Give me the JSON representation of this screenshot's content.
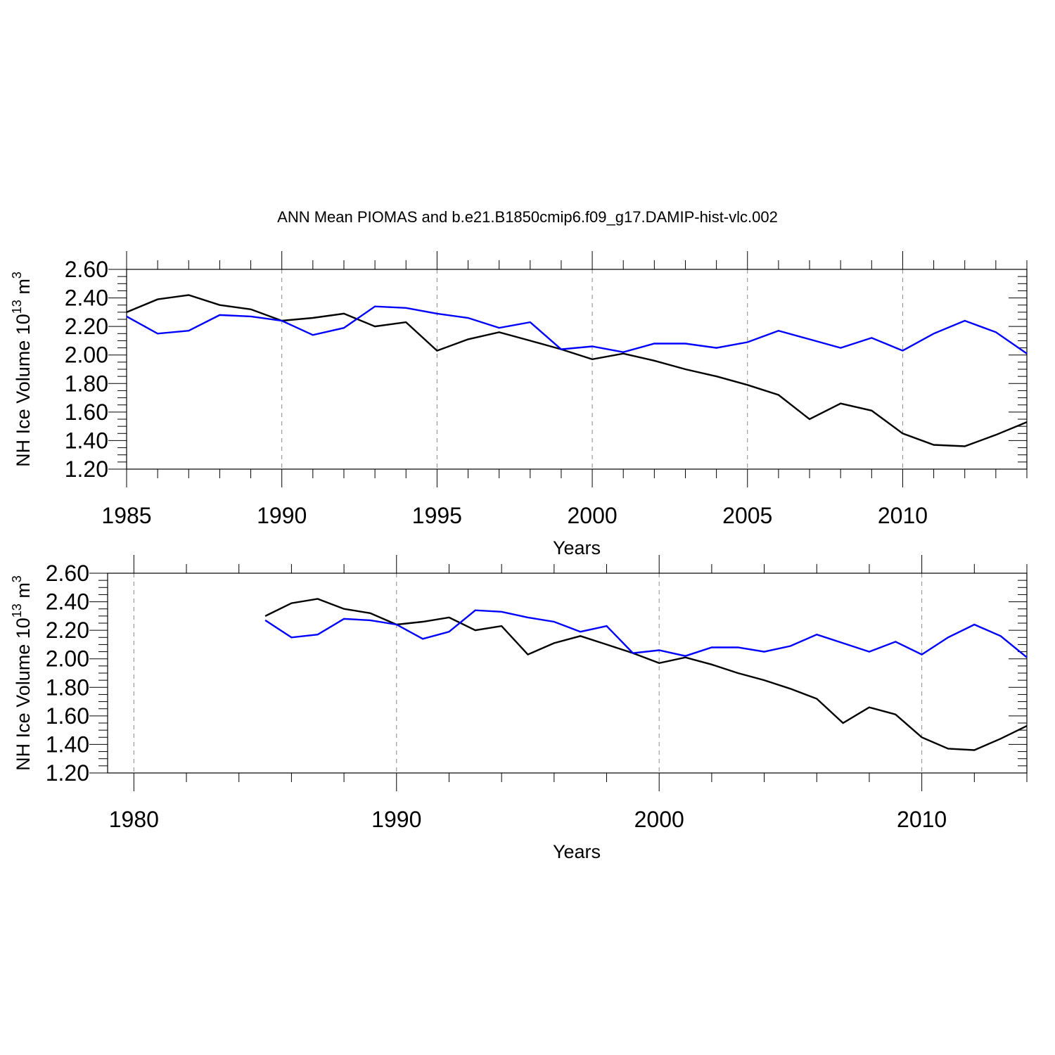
{
  "figure": {
    "title": "ANN Mean PIOMAS and b.e21.B1850cmip6.f09_g17.DAMIP-hist-vlc.002"
  },
  "chart_data": [
    {
      "type": "line",
      "xlabel": "Years",
      "ylabel": "NH Ice Volume 10",
      "ylabel_exp": "13",
      "ylabel_unit": " m",
      "ylabel_unit_exp": "3",
      "xlim": [
        1985,
        2014
      ],
      "ylim": [
        1.2,
        2.6
      ],
      "x_ticks": [
        1985,
        1990,
        1995,
        2000,
        2005,
        2010
      ],
      "x_tick_labels": [
        "1985",
        "1990",
        "1995",
        "2000",
        "2005",
        "2010"
      ],
      "x_minor_step": 1,
      "y_ticks": [
        1.2,
        1.4,
        1.6,
        1.8,
        2.0,
        2.2,
        2.4,
        2.6
      ],
      "y_tick_labels": [
        "1.20",
        "1.40",
        "1.60",
        "1.80",
        "2.00",
        "2.20",
        "2.40",
        "2.60"
      ],
      "y_minor_step": 0.05,
      "grid": "vertical dashed at major x ticks",
      "x": [
        1985,
        1986,
        1987,
        1988,
        1989,
        1990,
        1991,
        1992,
        1993,
        1994,
        1995,
        1996,
        1997,
        1998,
        1999,
        2000,
        2001,
        2002,
        2003,
        2004,
        2005,
        2006,
        2007,
        2008,
        2009,
        2010,
        2011,
        2012,
        2013,
        2014
      ],
      "series": [
        {
          "color": "#000000",
          "values": [
            2.3,
            2.39,
            2.42,
            2.35,
            2.32,
            2.24,
            2.26,
            2.29,
            2.2,
            2.23,
            2.03,
            2.11,
            2.16,
            2.1,
            2.04,
            1.97,
            2.01,
            1.96,
            1.9,
            1.85,
            1.79,
            1.72,
            1.55,
            1.66,
            1.61,
            1.45,
            1.37,
            1.36,
            1.44,
            1.53
          ]
        },
        {
          "color": "#0000ff",
          "values": [
            2.27,
            2.15,
            2.17,
            2.28,
            2.27,
            2.24,
            2.14,
            2.19,
            2.34,
            2.33,
            2.29,
            2.26,
            2.19,
            2.23,
            2.04,
            2.06,
            2.02,
            2.08,
            2.08,
            2.05,
            2.09,
            2.17,
            2.11,
            2.05,
            2.12,
            2.03,
            2.15,
            2.24,
            2.16,
            2.01
          ]
        }
      ]
    },
    {
      "type": "line",
      "xlabel": "Years",
      "ylabel": "NH Ice Volume 10",
      "ylabel_exp": "13",
      "ylabel_unit": " m",
      "ylabel_unit_exp": "3",
      "xlim": [
        1979,
        2014
      ],
      "ylim": [
        1.2,
        2.6
      ],
      "x_ticks": [
        1980,
        1990,
        2000,
        2010
      ],
      "x_tick_labels": [
        "1980",
        "1990",
        "2000",
        "2010"
      ],
      "x_minor_step": 2,
      "y_ticks": [
        1.2,
        1.4,
        1.6,
        1.8,
        2.0,
        2.2,
        2.4,
        2.6
      ],
      "y_tick_labels": [
        "1.20",
        "1.40",
        "1.60",
        "1.80",
        "2.00",
        "2.20",
        "2.40",
        "2.60"
      ],
      "y_minor_step": 0.05,
      "grid": "vertical dashed at major x ticks",
      "x": [
        1985,
        1986,
        1987,
        1988,
        1989,
        1990,
        1991,
        1992,
        1993,
        1994,
        1995,
        1996,
        1997,
        1998,
        1999,
        2000,
        2001,
        2002,
        2003,
        2004,
        2005,
        2006,
        2007,
        2008,
        2009,
        2010,
        2011,
        2012,
        2013,
        2014
      ],
      "series": [
        {
          "color": "#000000",
          "values": [
            2.3,
            2.39,
            2.42,
            2.35,
            2.32,
            2.24,
            2.26,
            2.29,
            2.2,
            2.23,
            2.03,
            2.11,
            2.16,
            2.1,
            2.04,
            1.97,
            2.01,
            1.96,
            1.9,
            1.85,
            1.79,
            1.72,
            1.55,
            1.66,
            1.61,
            1.45,
            1.37,
            1.36,
            1.44,
            1.53
          ]
        },
        {
          "color": "#0000ff",
          "values": [
            2.27,
            2.15,
            2.17,
            2.28,
            2.27,
            2.24,
            2.14,
            2.19,
            2.34,
            2.33,
            2.29,
            2.26,
            2.19,
            2.23,
            2.04,
            2.06,
            2.02,
            2.08,
            2.08,
            2.05,
            2.09,
            2.17,
            2.11,
            2.05,
            2.12,
            2.03,
            2.15,
            2.24,
            2.16,
            2.01
          ]
        }
      ]
    }
  ]
}
